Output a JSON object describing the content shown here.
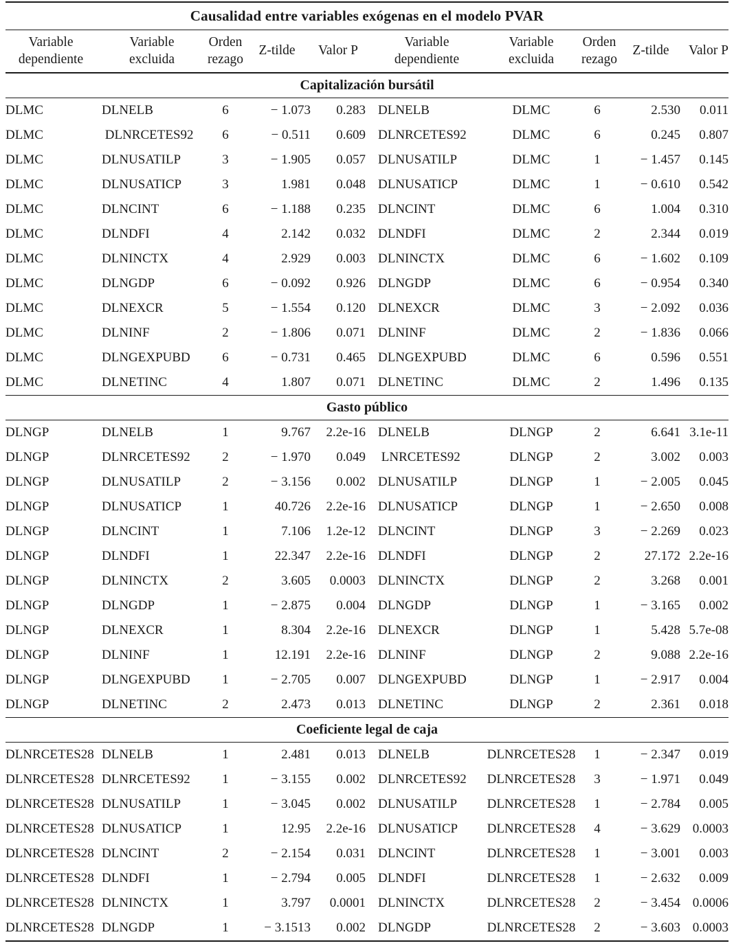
{
  "colors": {
    "text": "#1b1b1b",
    "background": "#ffffff",
    "rule": "#1b1b1b"
  },
  "table": {
    "title": "Causalidad entre variables exógenas en el modelo PVAR",
    "columns": [
      "Variable\ndependiente",
      "Variable\nexcluida",
      "Orden\nrezago",
      "Z-tilde",
      "Valor P",
      "Variable\ndependiente",
      "Variable\nexcluida",
      "Orden\nrezago",
      "Z-tilde",
      "Valor P"
    ],
    "sections": [
      {
        "id": "capitalizacion-bursatil",
        "header": "Capitalización bursátil",
        "rows": [
          [
            "DLMC",
            "DLNELB",
            "6",
            "− 1.073",
            "0.283",
            "DLNELB",
            "DLMC",
            "6",
            "2.530",
            "0.011"
          ],
          [
            "DLMC",
            " DLNRCETES92",
            "6",
            "− 0.511",
            "0.609",
            "DLNRCETES92",
            "DLMC",
            "6",
            "0.245",
            "0.807"
          ],
          [
            "DLMC",
            "DLNUSATILP",
            "3",
            "− 1.905",
            "0.057",
            "DLNUSATILP",
            "DLMC",
            "1",
            "− 1.457",
            "0.145"
          ],
          [
            "DLMC",
            "DLNUSATICP",
            "3",
            "1.981",
            "0.048",
            "DLNUSATICP",
            "DLMC",
            "1",
            "− 0.610",
            "0.542"
          ],
          [
            "DLMC",
            "DLNCINT",
            "6",
            "− 1.188",
            "0.235",
            "DLNCINT",
            "DLMC",
            "6",
            "1.004",
            "0.310"
          ],
          [
            "DLMC",
            "DLNDFI",
            "4",
            "2.142",
            "0.032",
            "DLNDFI",
            "DLMC",
            "2",
            "2.344",
            "0.019"
          ],
          [
            "DLMC",
            "DLNINCTX",
            "4",
            "2.929",
            "0.003",
            "DLNINCTX",
            "DLMC",
            "6",
            "− 1.602",
            "0.109"
          ],
          [
            "DLMC",
            "DLNGDP",
            "6",
            "− 0.092",
            "0.926",
            "DLNGDP",
            "DLMC",
            "6",
            "− 0.954",
            "0.340"
          ],
          [
            "DLMC",
            "DLNEXCR",
            "5",
            "− 1.554",
            "0.120",
            "DLNEXCR",
            "DLMC",
            "3",
            "− 2.092",
            "0.036"
          ],
          [
            "DLMC",
            "DLNINF",
            "2",
            "− 1.806",
            "0.071",
            "DLNINF",
            "DLMC",
            "2",
            "− 1.836",
            "0.066"
          ],
          [
            "DLMC",
            "DLNGEXPUBD",
            "6",
            "− 0.731",
            "0.465",
            "DLNGEXPUBD",
            "DLMC",
            "6",
            "0.596",
            "0.551"
          ],
          [
            "DLMC",
            "DLNETINC",
            "4",
            "1.807",
            "0.071",
            "DLNETINC",
            "DLMC",
            "2",
            "1.496",
            "0.135"
          ]
        ]
      },
      {
        "id": "gasto-publico",
        "header": "Gasto público",
        "rows": [
          [
            "DLNGP",
            "DLNELB",
            "1",
            "9.767",
            "2.2e-16",
            "DLNELB",
            "DLNGP",
            "2",
            "6.641",
            "3.1e-11"
          ],
          [
            "DLNGP",
            "DLNRCETES92",
            "2",
            "− 1.970",
            "0.049",
            " LNRCETES92",
            "DLNGP",
            "2",
            "3.002",
            "0.003"
          ],
          [
            "DLNGP",
            "DLNUSATILP",
            "2",
            "− 3.156",
            "0.002",
            "DLNUSATILP",
            "DLNGP",
            "1",
            "− 2.005",
            "0.045"
          ],
          [
            "DLNGP",
            "DLNUSATICP",
            "1",
            "40.726",
            "2.2e-16",
            "DLNUSATICP",
            "DLNGP",
            "1",
            "− 2.650",
            "0.008"
          ],
          [
            "DLNGP",
            "DLNCINT",
            "1",
            "7.106",
            "1.2e-12",
            "DLNCINT",
            "DLNGP",
            "3",
            "− 2.269",
            "0.023"
          ],
          [
            "DLNGP",
            "DLNDFI",
            "1",
            "22.347",
            "2.2e-16",
            "DLNDFI",
            "DLNGP",
            "2",
            "27.172",
            "2.2e-16"
          ],
          [
            "DLNGP",
            "DLNINCTX",
            "2",
            "3.605",
            "0.0003",
            "DLNINCTX",
            "DLNGP",
            "2",
            "3.268",
            "0.001"
          ],
          [
            "DLNGP",
            "DLNGDP",
            "1",
            "− 2.875",
            "0.004",
            "DLNGDP",
            "DLNGP",
            "1",
            "− 3.165",
            "0.002"
          ],
          [
            "DLNGP",
            "DLNEXCR",
            "1",
            "8.304",
            "2.2e-16",
            "DLNEXCR",
            "DLNGP",
            "1",
            "5.428",
            "5.7e-08"
          ],
          [
            "DLNGP",
            "DLNINF",
            "1",
            "12.191",
            "2.2e-16",
            "DLNINF",
            "DLNGP",
            "2",
            "9.088",
            "2.2e-16"
          ],
          [
            "DLNGP",
            "DLNGEXPUBD",
            "1",
            "− 2.705",
            "0.007",
            "DLNGEXPUBD",
            "DLNGP",
            "1",
            "− 2.917",
            "0.004"
          ],
          [
            "DLNGP",
            "DLNETINC",
            "2",
            "2.473",
            "0.013",
            "DLNETINC",
            "DLNGP",
            "2",
            "2.361",
            "0.018"
          ]
        ]
      },
      {
        "id": "coeficiente-legal-de-caja",
        "header": "Coeficiente legal de caja",
        "rows": [
          [
            "DLNRCETES28",
            "DLNELB",
            "1",
            "2.481",
            "0.013",
            "DLNELB",
            "DLNRCETES28",
            "1",
            "− 2.347",
            "0.019"
          ],
          [
            "DLNRCETES28",
            "DLNRCETES92",
            "1",
            "− 3.155",
            "0.002",
            "DLNRCETES92",
            "DLNRCETES28",
            "3",
            "− 1.971",
            "0.049"
          ],
          [
            "DLNRCETES28",
            "DLNUSATILP",
            "1",
            "− 3.045",
            "0.002",
            "DLNUSATILP",
            "DLNRCETES28",
            "1",
            "− 2.784",
            "0.005"
          ],
          [
            "DLNRCETES28",
            "DLNUSATICP",
            "1",
            "12.95",
            "2.2e-16",
            "DLNUSATICP",
            "DLNRCETES28",
            "4",
            "− 3.629",
            "0.0003"
          ],
          [
            "DLNRCETES28",
            "DLNCINT",
            "2",
            "− 2.154",
            "0.031",
            "DLNCINT",
            "DLNRCETES28",
            "1",
            "− 3.001",
            "0.003"
          ],
          [
            "DLNRCETES28",
            "DLNDFI",
            "1",
            "− 2.794",
            "0.005",
            "DLNDFI",
            "DLNRCETES28",
            "1",
            "− 2.632",
            "0.009"
          ],
          [
            "DLNRCETES28",
            "DLNINCTX",
            "1",
            "3.797",
            "0.0001",
            "DLNINCTX",
            "DLNRCETES28",
            "2",
            "− 3.454",
            "0.0006"
          ],
          [
            "DLNRCETES28",
            "DLNGDP",
            "1",
            "− 3.1513",
            "0.002",
            "DLNGDP",
            "DLNRCETES28",
            "2",
            "− 3.603",
            "0.0003"
          ]
        ]
      }
    ]
  }
}
